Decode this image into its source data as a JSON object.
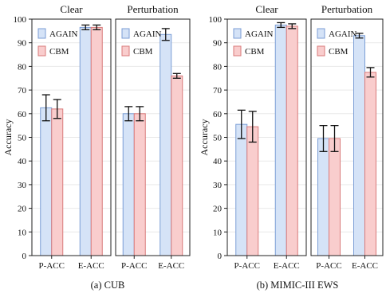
{
  "chart_data": [
    {
      "type": "bar",
      "figure": "cub",
      "caption": "(a) CUB",
      "ylabel": "Accuracy",
      "ylim": [
        0,
        100
      ],
      "yticks": [
        0,
        10,
        20,
        30,
        40,
        50,
        60,
        70,
        80,
        90,
        100
      ],
      "grid": true,
      "panels": [
        {
          "title": "Clear",
          "categories": [
            "P-ACC",
            "E-ACC"
          ],
          "series": [
            {
              "name": "AGAIN",
              "values": [
                62.5,
                96.5
              ],
              "errors": [
                5.5,
                1.0
              ]
            },
            {
              "name": "CBM",
              "values": [
                62.0,
                96.5
              ],
              "errors": [
                4.0,
                1.0
              ]
            }
          ]
        },
        {
          "title": "Perturbation",
          "categories": [
            "P-ACC",
            "E-ACC"
          ],
          "series": [
            {
              "name": "AGAIN",
              "values": [
                60.0,
                93.5
              ],
              "errors": [
                3.0,
                2.5
              ]
            },
            {
              "name": "CBM",
              "values": [
                60.0,
                76.0
              ],
              "errors": [
                3.0,
                1.0
              ]
            }
          ]
        }
      ]
    },
    {
      "type": "bar",
      "figure": "mimic",
      "caption": "(b) MIMIC-III EWS",
      "ylabel": "Accuracy",
      "ylim": [
        0,
        100
      ],
      "yticks": [
        0,
        10,
        20,
        30,
        40,
        50,
        60,
        70,
        80,
        90,
        100
      ],
      "grid": true,
      "panels": [
        {
          "title": "Clear",
          "categories": [
            "P-ACC",
            "E-ACC"
          ],
          "series": [
            {
              "name": "AGAIN",
              "values": [
                55.5,
                97.5
              ],
              "errors": [
                6.0,
                1.0
              ]
            },
            {
              "name": "CBM",
              "values": [
                54.5,
                97.0
              ],
              "errors": [
                6.5,
                1.0
              ]
            }
          ]
        },
        {
          "title": "Perturbation",
          "categories": [
            "P-ACC",
            "E-ACC"
          ],
          "series": [
            {
              "name": "AGAIN",
              "values": [
                49.5,
                93.0
              ],
              "errors": [
                5.5,
                1.0
              ]
            },
            {
              "name": "CBM",
              "values": [
                49.5,
                77.5
              ],
              "errors": [
                5.5,
                2.0
              ]
            }
          ]
        }
      ]
    }
  ],
  "colors": {
    "AGAIN_fill": "#d5e3f7",
    "AGAIN_stroke": "#7b9ed6",
    "CBM_fill": "#f9cdcd",
    "CBM_stroke": "#d97a7a",
    "frame": "#222222",
    "errorbar": "#111111"
  }
}
